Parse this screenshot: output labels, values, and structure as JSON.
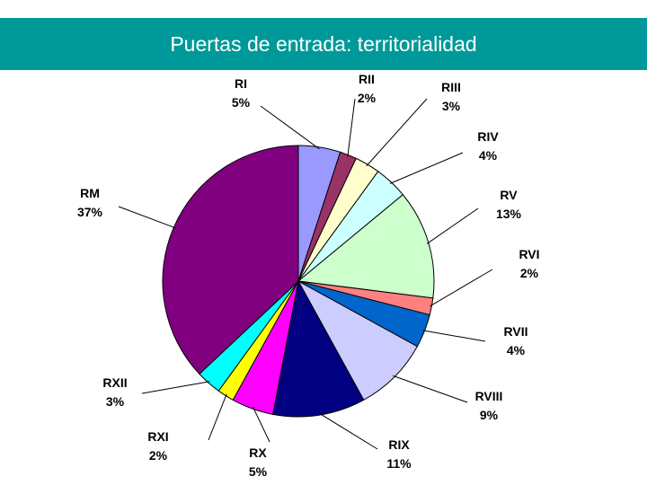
{
  "header": {
    "title": "Puertas de entrada: territorialidad"
  },
  "chart_data": {
    "type": "pie",
    "title": "",
    "slices": [
      {
        "name": "RI",
        "value": 5,
        "pct_label": "5%",
        "color": "#9999ff"
      },
      {
        "name": "RII",
        "value": 2,
        "pct_label": "2%",
        "color": "#993366"
      },
      {
        "name": "RIII",
        "value": 3,
        "pct_label": "3%",
        "color": "#ffffcc"
      },
      {
        "name": "RIV",
        "value": 4,
        "pct_label": "4%",
        "color": "#ccffff"
      },
      {
        "name": "RV",
        "value": 13,
        "pct_label": "13%",
        "color": "#ccffcc"
      },
      {
        "name": "RVI",
        "value": 2,
        "pct_label": "2%",
        "color": "#ff8080"
      },
      {
        "name": "RVII",
        "value": 4,
        "pct_label": "4%",
        "color": "#0066cc"
      },
      {
        "name": "RVIII",
        "value": 9,
        "pct_label": "9%",
        "color": "#ccccff"
      },
      {
        "name": "RIX",
        "value": 11,
        "pct_label": "11%",
        "color": "#000080"
      },
      {
        "name": "RX",
        "value": 5,
        "pct_label": "5%",
        "color": "#ff00ff"
      },
      {
        "name": "RXI",
        "value": 2,
        "pct_label": "2%",
        "color": "#ffff00"
      },
      {
        "name": "RXII",
        "value": 3,
        "pct_label": "3%",
        "color": "#00ffff"
      },
      {
        "name": "RM",
        "value": 37,
        "pct_label": "37%",
        "color": "#800080"
      }
    ]
  }
}
